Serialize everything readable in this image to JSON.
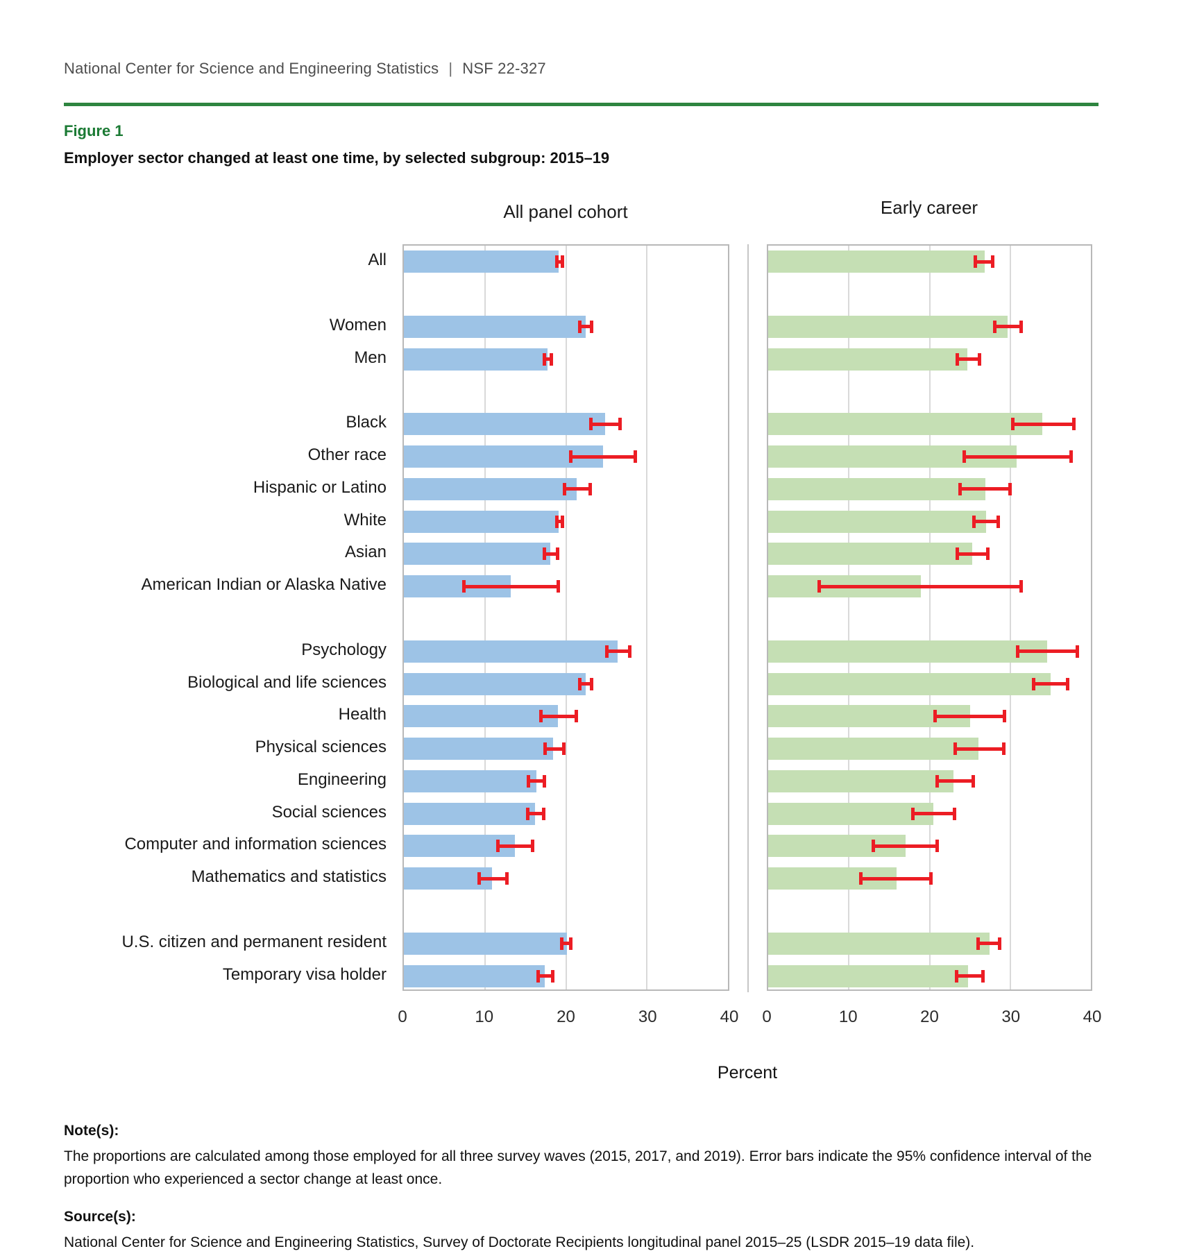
{
  "header": {
    "org": "National Center for Science and Engineering Statistics",
    "separator": "|",
    "report_id": "NSF 22-327"
  },
  "figure": {
    "label": "Figure 1",
    "title": "Employer sector changed at least one time, by selected subgroup: 2015–19"
  },
  "chart_data": {
    "type": "bar",
    "orientation": "horizontal",
    "xlabel": "Percent",
    "xlim": [
      0,
      40
    ],
    "x_ticks": [
      0,
      10,
      20,
      30,
      40
    ],
    "grid": true,
    "error_bars": "95% confidence interval",
    "error_bar_color": "#ec1d24",
    "categories": [
      "All",
      "Women",
      "Men",
      "Black",
      "Other race",
      "Hispanic or Latino",
      "White",
      "Asian",
      "American Indian or Alaska Native",
      "Psychology",
      "Biological and life sciences",
      "Health",
      "Physical sciences",
      "Engineering",
      "Social sciences",
      "Computer and information sciences",
      "Mathematics and statistics",
      "U.S. citizen and permanent resident",
      "Temporary visa holder"
    ],
    "group_gaps_after_indices": [
      0,
      2,
      8,
      16
    ],
    "series": [
      {
        "name": "All panel cohort",
        "color": "#9dc3e6",
        "values": [
          19.1,
          22.4,
          17.7,
          24.8,
          24.6,
          21.3,
          19.1,
          18.1,
          13.2,
          26.4,
          22.4,
          19.0,
          18.4,
          16.4,
          16.2,
          13.7,
          10.9,
          20.1,
          17.4
        ],
        "ci_low": [
          18.7,
          21.5,
          17.1,
          22.9,
          20.4,
          19.6,
          18.7,
          17.1,
          7.2,
          24.8,
          21.5,
          16.7,
          17.2,
          15.2,
          15.1,
          11.4,
          9.1,
          19.3,
          16.4
        ],
        "ci_high": [
          19.8,
          23.4,
          18.4,
          26.9,
          28.8,
          23.2,
          19.8,
          19.2,
          19.3,
          28.1,
          23.4,
          21.5,
          20.0,
          17.6,
          17.5,
          16.1,
          12.9,
          20.8,
          18.6
        ]
      },
      {
        "name": "Early career",
        "color": "#c5dfb4",
        "values": [
          26.8,
          29.7,
          24.7,
          34.0,
          30.8,
          26.9,
          27.0,
          25.3,
          18.9,
          34.6,
          35.0,
          25.0,
          26.1,
          23.0,
          20.5,
          17.0,
          15.9,
          27.4,
          24.8
        ],
        "ci_low": [
          25.5,
          27.9,
          23.2,
          30.1,
          24.1,
          23.6,
          25.3,
          23.2,
          6.1,
          30.7,
          32.7,
          20.5,
          23.0,
          20.7,
          17.7,
          12.8,
          11.3,
          25.8,
          23.1
        ],
        "ci_high": [
          28.0,
          31.6,
          26.4,
          38.1,
          37.8,
          30.2,
          28.7,
          27.4,
          31.6,
          38.5,
          37.3,
          29.5,
          29.4,
          25.6,
          23.3,
          21.2,
          20.4,
          28.9,
          26.8
        ]
      }
    ]
  },
  "notes": {
    "label": "Note(s):",
    "text": "The proportions are calculated among those employed for all three survey waves (2015, 2017, and 2019). Error bars indicate the 95% confidence interval of the proportion who experienced a sector change at least once."
  },
  "source": {
    "label": "Source(s):",
    "text": "National Center for Science and Engineering Statistics, Survey of Doctorate Recipients longitudinal panel 2015–25 (LSDR 2015–19 data file)."
  }
}
